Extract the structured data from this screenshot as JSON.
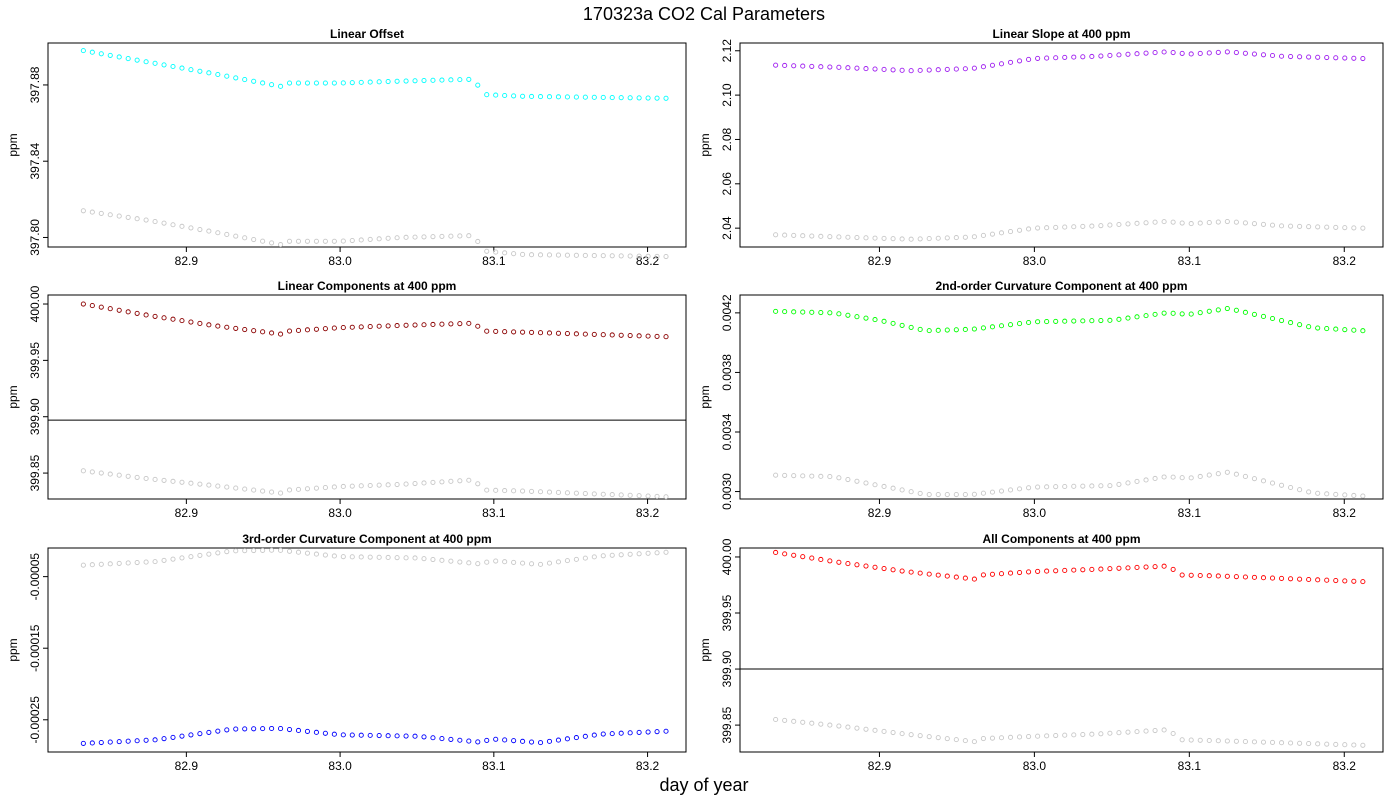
{
  "figure": {
    "title": "170323a   CO2 Cal Parameters",
    "xlabel": "day of year"
  },
  "colors": {
    "reference_series": "#c8c8c8",
    "frame": "#000000",
    "reference_line": "#000000"
  },
  "chart_data": [
    {
      "type": "scatter",
      "title": "Linear Offset",
      "ylabel": "ppm",
      "color": "#00ffff",
      "xlim": [
        82.81,
        83.225
      ],
      "ylim": [
        397.795,
        397.902
      ],
      "xticks": [
        82.9,
        83.0,
        83.1,
        83.2
      ],
      "xtick_labels": [
        "82.9",
        "83.0",
        "83.1",
        "83.2"
      ],
      "yticks": [
        397.8,
        397.84,
        397.88
      ],
      "ytick_labels": [
        "397.80",
        "397.84",
        "397.88"
      ],
      "hline": null,
      "series": [
        {
          "role": "main",
          "knots": [
            [
              82.833,
              397.898
            ],
            [
              82.875,
              397.892
            ],
            [
              82.917,
              397.886
            ],
            [
              82.963,
              397.879
            ],
            [
              82.967,
              397.881
            ],
            [
              83.0,
              397.881
            ],
            [
              83.04,
              397.882
            ],
            [
              83.088,
              397.883
            ],
            [
              83.092,
              397.875
            ],
            [
              83.12,
              397.874
            ],
            [
              83.212,
              397.873
            ]
          ]
        },
        {
          "role": "reference",
          "knots": [
            [
              82.833,
              397.814
            ],
            [
              82.875,
              397.809
            ],
            [
              82.917,
              397.803
            ],
            [
              82.963,
              397.796
            ],
            [
              82.967,
              397.798
            ],
            [
              83.0,
              397.798
            ],
            [
              83.04,
              397.8
            ],
            [
              83.088,
              397.801
            ],
            [
              83.092,
              397.793
            ],
            [
              83.12,
              397.791
            ],
            [
              83.212,
              397.79
            ]
          ]
        }
      ]
    },
    {
      "type": "scatter",
      "title": "Linear Slope at 400 ppm",
      "ylabel": "ppm",
      "color": "#a020f0",
      "xlim": [
        82.81,
        83.225
      ],
      "ylim": [
        2.0315,
        2.1235
      ],
      "xticks": [
        82.9,
        83.0,
        83.1,
        83.2
      ],
      "xtick_labels": [
        "82.9",
        "83.0",
        "83.1",
        "83.2"
      ],
      "yticks": [
        2.04,
        2.06,
        2.08,
        2.1,
        2.12
      ],
      "ytick_labels": [
        "2.04",
        "2.06",
        "2.08",
        "2.10",
        "2.12"
      ],
      "hline": null,
      "series": [
        {
          "role": "main",
          "knots": [
            [
              82.833,
              2.1135
            ],
            [
              82.875,
              2.1125
            ],
            [
              82.92,
              2.111
            ],
            [
              82.96,
              2.112
            ],
            [
              83.0,
              2.1165
            ],
            [
              83.04,
              2.1175
            ],
            [
              83.085,
              2.1195
            ],
            [
              83.1,
              2.1185
            ],
            [
              83.125,
              2.1195
            ],
            [
              83.16,
              2.1175
            ],
            [
              83.212,
              2.1165
            ]
          ]
        },
        {
          "role": "reference",
          "knots": [
            [
              82.833,
              2.037
            ],
            [
              82.875,
              2.036
            ],
            [
              82.92,
              2.035
            ],
            [
              82.96,
              2.036
            ],
            [
              83.0,
              2.04
            ],
            [
              83.04,
              2.041
            ],
            [
              83.085,
              2.043
            ],
            [
              83.1,
              2.042
            ],
            [
              83.125,
              2.043
            ],
            [
              83.16,
              2.041
            ],
            [
              83.212,
              2.04
            ]
          ]
        }
      ]
    },
    {
      "type": "scatter",
      "title": "Linear Components at 400 ppm",
      "ylabel": "ppm",
      "color": "#8b0000",
      "xlim": [
        82.81,
        83.225
      ],
      "ylim": [
        399.827,
        400.008
      ],
      "xticks": [
        82.9,
        83.0,
        83.1,
        83.2
      ],
      "xtick_labels": [
        "82.9",
        "83.0",
        "83.1",
        "83.2"
      ],
      "yticks": [
        399.85,
        399.9,
        399.95,
        400.0
      ],
      "ytick_labels": [
        "399.85",
        "399.90",
        "399.95",
        "400.00"
      ],
      "hline": 399.897,
      "series": [
        {
          "role": "main",
          "knots": [
            [
              82.833,
              400.0
            ],
            [
              82.875,
              399.99
            ],
            [
              82.917,
              399.981
            ],
            [
              82.963,
              399.973
            ],
            [
              82.967,
              399.976
            ],
            [
              83.0,
              399.979
            ],
            [
              83.04,
              399.981
            ],
            [
              83.088,
              399.983
            ],
            [
              83.092,
              399.976
            ],
            [
              83.12,
              399.975
            ],
            [
              83.212,
              399.971
            ]
          ]
        },
        {
          "role": "reference",
          "knots": [
            [
              82.833,
              399.852
            ],
            [
              82.875,
              399.845
            ],
            [
              82.917,
              399.839
            ],
            [
              82.963,
              399.832
            ],
            [
              82.967,
              399.835
            ],
            [
              83.0,
              399.838
            ],
            [
              83.04,
              399.84
            ],
            [
              83.088,
              399.844
            ],
            [
              83.092,
              399.835
            ],
            [
              83.12,
              399.834
            ],
            [
              83.212,
              399.829
            ]
          ]
        }
      ]
    },
    {
      "type": "scatter",
      "title": "2nd-order Curvature Component at 400 ppm",
      "ylabel": "ppm",
      "color": "#00ff00",
      "xlim": [
        82.81,
        83.225
      ],
      "ylim": [
        0.00295,
        0.00432
      ],
      "xticks": [
        82.9,
        83.0,
        83.1,
        83.2
      ],
      "xtick_labels": [
        "82.9",
        "83.0",
        "83.1",
        "83.2"
      ],
      "yticks": [
        0.003,
        0.0034,
        0.0038,
        0.0042
      ],
      "ytick_labels": [
        "0.0030",
        "0.0034",
        "0.0038",
        "0.0042"
      ],
      "hline": null,
      "series": [
        {
          "role": "main",
          "knots": [
            [
              82.833,
              0.00421
            ],
            [
              82.87,
              0.0042
            ],
            [
              82.9,
              0.00415
            ],
            [
              82.93,
              0.00408
            ],
            [
              82.96,
              0.00409
            ],
            [
              83.0,
              0.00414
            ],
            [
              83.05,
              0.00415
            ],
            [
              83.085,
              0.0042
            ],
            [
              83.1,
              0.00419
            ],
            [
              83.125,
              0.00423
            ],
            [
              83.18,
              0.0041
            ],
            [
              83.212,
              0.00408
            ]
          ]
        },
        {
          "role": "reference",
          "knots": [
            [
              82.833,
              0.00311
            ],
            [
              82.87,
              0.0031
            ],
            [
              82.9,
              0.00304
            ],
            [
              82.93,
              0.00298
            ],
            [
              82.96,
              0.00298
            ],
            [
              83.0,
              0.00303
            ],
            [
              83.05,
              0.00304
            ],
            [
              83.085,
              0.0031
            ],
            [
              83.1,
              0.00309
            ],
            [
              83.125,
              0.00313
            ],
            [
              83.18,
              0.00299
            ],
            [
              83.212,
              0.00297
            ]
          ]
        }
      ]
    },
    {
      "type": "scatter",
      "title": "3rd-order Curvature Component at 400 ppm",
      "ylabel": "ppm",
      "color": "#0000ff",
      "xlim": [
        82.81,
        83.225
      ],
      "ylim": [
        -0.000295,
        -1e-05
      ],
      "xticks": [
        82.9,
        83.0,
        83.1,
        83.2
      ],
      "xtick_labels": [
        "82.9",
        "83.0",
        "83.1",
        "83.2"
      ],
      "yticks": [
        -0.00025,
        -0.00015,
        -5e-05
      ],
      "ytick_labels": [
        "-0.00025",
        "-0.00015",
        "-0.00005"
      ],
      "hline": null,
      "series": [
        {
          "role": "main",
          "knots": [
            [
              82.833,
              -0.000283
            ],
            [
              82.88,
              -0.000278
            ],
            [
              82.93,
              -0.000263
            ],
            [
              82.96,
              -0.000262
            ],
            [
              83.0,
              -0.000271
            ],
            [
              83.05,
              -0.000273
            ],
            [
              83.09,
              -0.000281
            ],
            [
              83.1,
              -0.000277
            ],
            [
              83.13,
              -0.000282
            ],
            [
              83.17,
              -0.00027
            ],
            [
              83.212,
              -0.000266
            ]
          ]
        },
        {
          "role": "reference",
          "knots": [
            [
              82.833,
              -3.4e-05
            ],
            [
              82.88,
              -2.9e-05
            ],
            [
              82.93,
              -1.4e-05
            ],
            [
              82.96,
              -1.3e-05
            ],
            [
              83.0,
              -2.2e-05
            ],
            [
              83.05,
              -2.4e-05
            ],
            [
              83.09,
              -3.2e-05
            ],
            [
              83.1,
              -2.8e-05
            ],
            [
              83.13,
              -3.3e-05
            ],
            [
              83.17,
              -2.1e-05
            ],
            [
              83.212,
              -1.6e-05
            ]
          ]
        }
      ]
    },
    {
      "type": "scatter",
      "title": "All Components at 400 ppm",
      "ylabel": "ppm",
      "color": "#ff0000",
      "xlim": [
        82.81,
        83.225
      ],
      "ylim": [
        399.826,
        400.008
      ],
      "xticks": [
        82.9,
        83.0,
        83.1,
        83.2
      ],
      "xtick_labels": [
        "82.9",
        "83.0",
        "83.1",
        "83.2"
      ],
      "yticks": [
        399.85,
        399.9,
        399.95,
        400.0
      ],
      "ytick_labels": [
        "399.85",
        "399.90",
        "399.95",
        "400.00"
      ],
      "hline": 399.9,
      "series": [
        {
          "role": "main",
          "knots": [
            [
              82.833,
              400.004
            ],
            [
              82.875,
              399.995
            ],
            [
              82.917,
              399.987
            ],
            [
              82.963,
              399.98
            ],
            [
              82.967,
              399.984
            ],
            [
              83.0,
              399.987
            ],
            [
              83.04,
              399.989
            ],
            [
              83.088,
              399.992
            ],
            [
              83.092,
              399.984
            ],
            [
              83.12,
              399.983
            ],
            [
              83.212,
              399.978
            ]
          ]
        },
        {
          "role": "reference",
          "knots": [
            [
              82.833,
              399.855
            ],
            [
              82.875,
              399.849
            ],
            [
              82.917,
              399.842
            ],
            [
              82.963,
              399.835
            ],
            [
              82.967,
              399.838
            ],
            [
              83.0,
              399.84
            ],
            [
              83.04,
              399.842
            ],
            [
              83.088,
              399.846
            ],
            [
              83.092,
              399.837
            ],
            [
              83.12,
              399.836
            ],
            [
              83.212,
              399.832
            ]
          ]
        }
      ]
    }
  ]
}
